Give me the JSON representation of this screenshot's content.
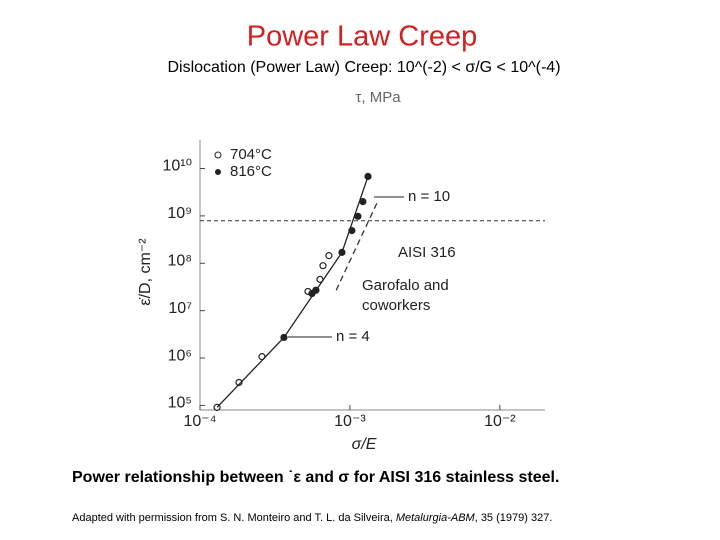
{
  "chart_data": {
    "type": "scatter",
    "title": "Power Law Creep",
    "subtitle": "Dislocation (Power Law) Creep: 10^(-2) < σ/G < 10^(-4)",
    "x_label": "σ/E",
    "y_label": "ε̇/D, cm⁻²",
    "top_axis_label": "τ, MPa",
    "xscale": "log",
    "yscale": "log",
    "xlim": [
      0.0001,
      0.02
    ],
    "ylim": [
      80000,
      40000000000
    ],
    "xticks": [
      {
        "value": 0.0001,
        "label": "10⁻⁴"
      },
      {
        "value": 0.001,
        "label": "10⁻³"
      },
      {
        "value": 0.01,
        "label": "10⁻²"
      }
    ],
    "yticks": [
      {
        "value": 100000,
        "label": "10⁵"
      },
      {
        "value": 1000000,
        "label": "10⁶"
      },
      {
        "value": 10000000,
        "label": "10⁷"
      },
      {
        "value": 100000000,
        "label": "10⁸"
      },
      {
        "value": 1000000000,
        "label": "10⁹"
      },
      {
        "value": 10000000000,
        "label": "10¹⁰"
      }
    ],
    "series": [
      {
        "name": "704°C",
        "marker": "open",
        "color": "#222222",
        "x": [
          0.00013,
          0.000182,
          0.000259,
          0.000525,
          0.000631,
          0.000661,
          0.000724
        ],
        "values": [
          91000,
          305000,
          1070000,
          25400000,
          45700000,
          89000000,
          145000000
        ]
      },
      {
        "name": "816°C",
        "marker": "filled",
        "color": "#222222",
        "x": [
          0.000363,
          0.000558,
          0.000593,
          0.000885,
          0.00103,
          0.00113,
          0.00122,
          0.00132
        ],
        "values": [
          2720000,
          23000000,
          27000000,
          170000000,
          490000000,
          980000000,
          2000000000,
          6800000000
        ]
      },
      {
        "marker": "line",
        "color": "#222222",
        "x": [
          0.00013,
          0.000363,
          0.000885,
          0.00132
        ],
        "values": [
          91000,
          2720000,
          170000000,
          6800000000
        ]
      }
    ],
    "hline": 790000000,
    "dashed_line": {
      "x": [
        0.00081,
        0.00154
      ],
      "values": [
        27000000,
        2100000000
      ]
    },
    "annotations": [
      "n = 10",
      "n = 4",
      "AISI 316",
      "Garofalo and",
      "coworkers"
    ]
  },
  "caption": "Power relationship between ˙ε and σ for AISI 316 stainless steel.",
  "credit": {
    "before": "Adapted with permission from S. N. Monteiro and T. L. da Silveira, ",
    "journal": "Metalurgia-ABM",
    "after": ", 35 (1979) 327."
  }
}
